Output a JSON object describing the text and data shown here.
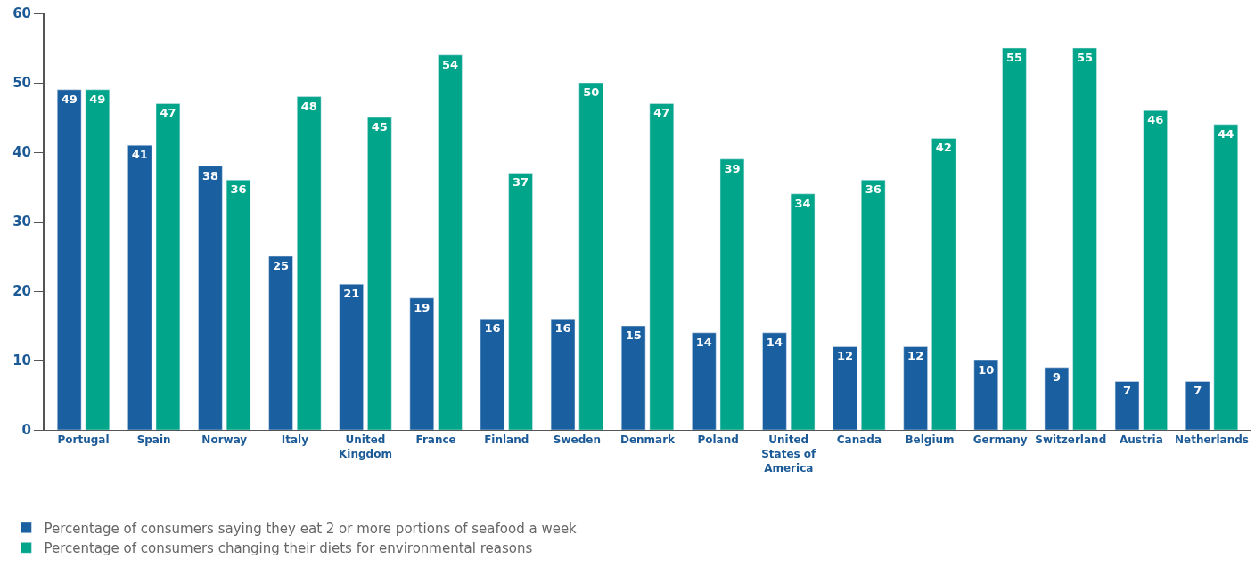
{
  "chart_data": {
    "type": "bar",
    "categories": [
      "Portugal",
      "Spain",
      "Norway",
      "Italy",
      "United Kingdom",
      "France",
      "Finland",
      "Sweden",
      "Denmark",
      "Poland",
      "United States of America",
      "Canada",
      "Belgium",
      "Germany",
      "Switzerland",
      "Austria",
      "Netherlands"
    ],
    "series": [
      {
        "name": "Percentage of consumers saying they eat 2 or more portions of seafood a week",
        "color": "#1a5fa0",
        "values": [
          49,
          41,
          38,
          25,
          21,
          19,
          16,
          16,
          15,
          14,
          14,
          12,
          12,
          10,
          9,
          7,
          7
        ]
      },
      {
        "name": "Percentage of consumers changing their diets for environmental reasons",
        "color": "#00a58a",
        "values": [
          49,
          47,
          36,
          48,
          45,
          54,
          37,
          50,
          47,
          39,
          34,
          36,
          42,
          55,
          55,
          46,
          44
        ]
      }
    ],
    "ylim": [
      0,
      60
    ],
    "yticks": [
      0,
      10,
      20,
      30,
      40,
      50,
      60
    ],
    "legend": "bottom left",
    "data_labels": true
  }
}
